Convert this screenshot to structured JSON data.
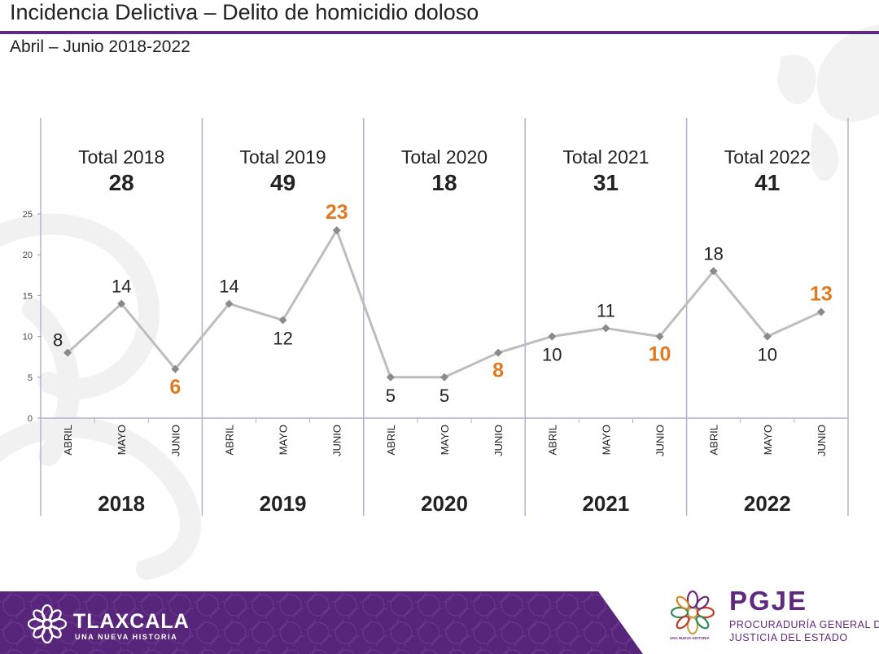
{
  "header": {
    "title": "Incidencia Delictiva – Delito de homicidio doloso",
    "subtitle": "Abril – Junio  2018-2022"
  },
  "colors": {
    "purple": "#5e2a7e",
    "orange": "#e07a1f",
    "line": "#bdbdbd",
    "marker": "#8a8a8a",
    "divider": "#b7afd1",
    "text": "#222222"
  },
  "chart_data": {
    "type": "line",
    "title": "",
    "xlabel": "",
    "ylabel": "",
    "ylim": [
      0,
      25
    ],
    "yticks": [
      0,
      5,
      10,
      15,
      20,
      25
    ],
    "grid": false,
    "total_label_prefix": "Total",
    "groups": [
      {
        "year": "2018",
        "total": 28,
        "months": [
          "ABRIL",
          "MAYO",
          "JUNIO"
        ],
        "values": [
          8,
          14,
          6
        ],
        "highlight_index": 2
      },
      {
        "year": "2019",
        "total": 49,
        "months": [
          "ABRIL",
          "MAYO",
          "JUNIO"
        ],
        "values": [
          14,
          12,
          23
        ],
        "highlight_index": 2
      },
      {
        "year": "2020",
        "total": 18,
        "months": [
          "ABRIL",
          "MAYO",
          "JUNIO"
        ],
        "values": [
          5,
          5,
          8
        ],
        "highlight_index": 2
      },
      {
        "year": "2021",
        "total": 31,
        "months": [
          "ABRIL",
          "MAYO",
          "JUNIO"
        ],
        "values": [
          10,
          11,
          10
        ],
        "highlight_index": 2
      },
      {
        "year": "2022",
        "total": 41,
        "months": [
          "ABRIL",
          "MAYO",
          "JUNIO"
        ],
        "values": [
          18,
          10,
          13
        ],
        "highlight_index": 2
      }
    ]
  },
  "footer": {
    "left_logo_name": "TLAXCALA",
    "left_logo_tagline": "UNA NUEVA HISTORIA",
    "right_logo_name": "PGJE",
    "right_logo_line1": "PROCURADURÍA GENERAL DE",
    "right_logo_line2": "JUSTICIA DEL ESTADO",
    "seal_tagline": "UNA NUEVA HISTORIA"
  }
}
